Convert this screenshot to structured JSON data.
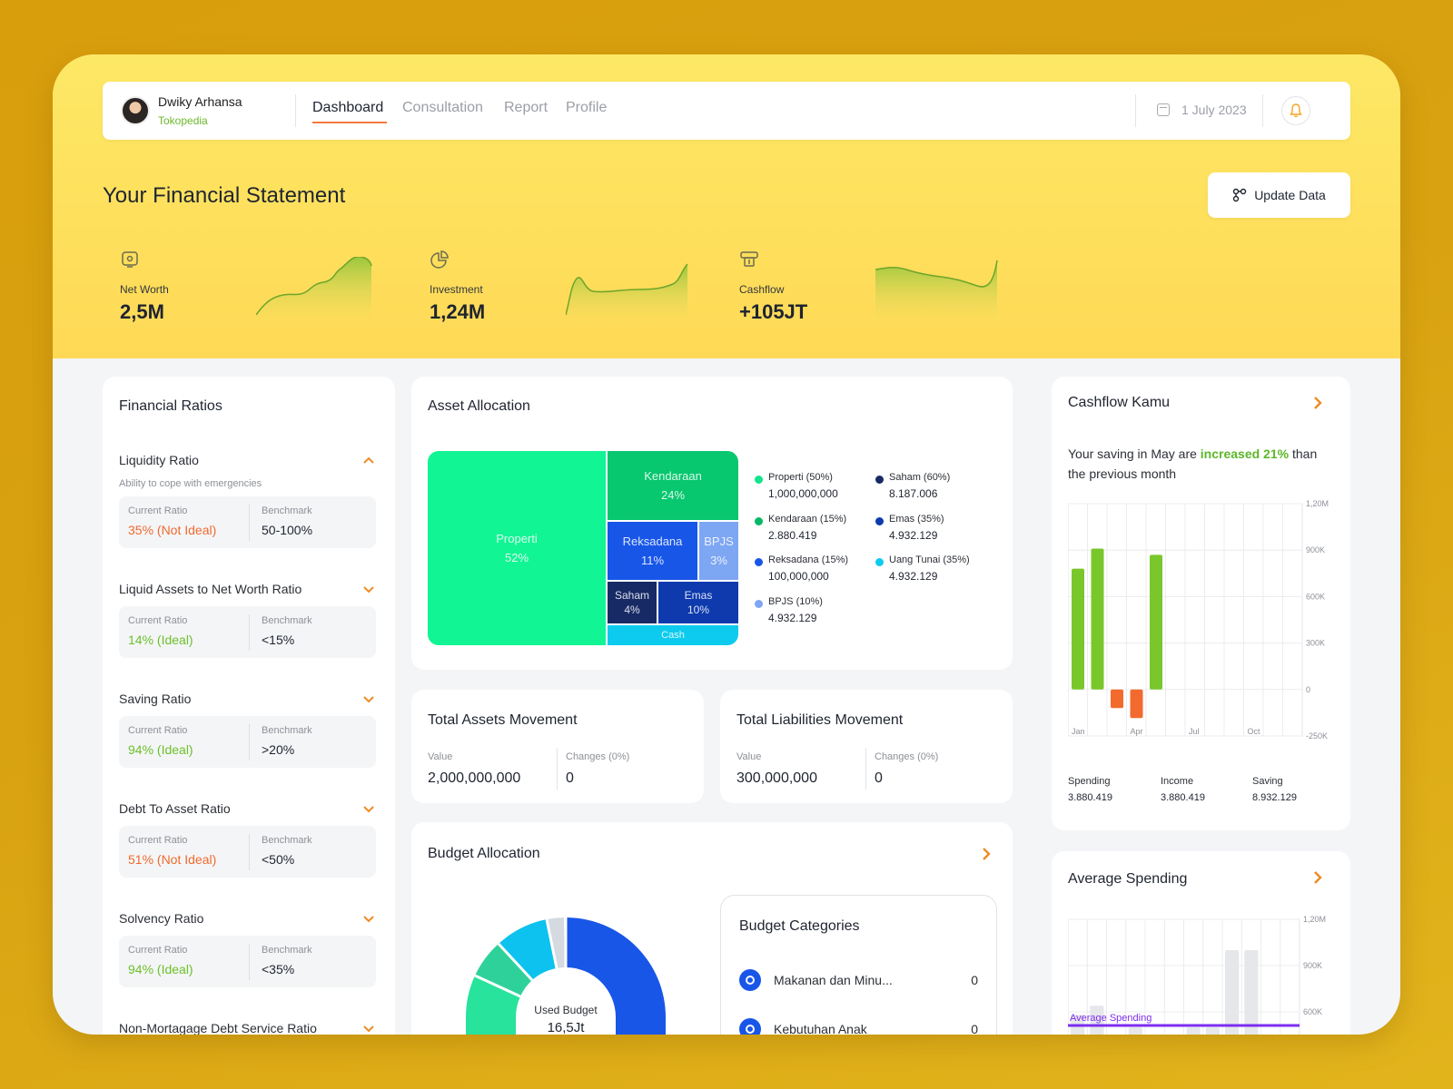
{
  "nav": {
    "user_name": "Dwiky Arhansa",
    "company": "Tokopedia",
    "tabs": [
      {
        "label": "Dashboard",
        "active": true
      },
      {
        "label": "Consultation",
        "active": false
      },
      {
        "label": "Report",
        "active": false
      },
      {
        "label": "Profile",
        "active": false
      }
    ],
    "date": "1 July 2023"
  },
  "hero": {
    "title": "Your Financial Statement",
    "update_button": "Update Data",
    "metrics": [
      {
        "label": "Net Worth",
        "value": "2,5M",
        "icon": "wallet-icon"
      },
      {
        "label": "Investment",
        "value": "1,24M",
        "icon": "pie-chart-icon"
      },
      {
        "label": "Cashflow",
        "value": "+105JT",
        "icon": "cash-icon"
      }
    ]
  },
  "ratios": {
    "title": "Financial Ratios",
    "items": [
      {
        "name": "Liquidity Ratio",
        "subtitle": "Ability to cope with emergencies",
        "current_label": "Current Ratio",
        "current": "35% (Not Ideal)",
        "status": "bad",
        "benchmark_label": "Benchmark",
        "benchmark": "50-100%",
        "expanded": true
      },
      {
        "name": "Liquid Assets to Net Worth Ratio",
        "current_label": "Current Ratio",
        "current": "14% (Ideal)",
        "status": "good",
        "benchmark_label": "Benchmark",
        "benchmark": "<15%"
      },
      {
        "name": "Saving Ratio",
        "current_label": "Current Ratio",
        "current": "94% (Ideal)",
        "status": "good",
        "benchmark_label": "Benchmark",
        "benchmark": ">20%"
      },
      {
        "name": "Debt To Asset Ratio",
        "current_label": "Current Ratio",
        "current": "51% (Not Ideal)",
        "status": "bad",
        "benchmark_label": "Benchmark",
        "benchmark": "<50%"
      },
      {
        "name": "Solvency Ratio",
        "current_label": "Current Ratio",
        "current": "94% (Ideal)",
        "status": "good",
        "benchmark_label": "Benchmark",
        "benchmark": "<35%"
      },
      {
        "name": "Non-Mortagage Debt Service Ratio"
      }
    ]
  },
  "asset_allocation": {
    "title": "Asset Allocation",
    "cells": [
      {
        "name": "Properti",
        "pct": "52%",
        "color": "#12f594"
      },
      {
        "name": "Kendaraan",
        "pct": "24%",
        "color": "#07c76f"
      },
      {
        "name": "Reksadana",
        "pct": "11%",
        "color": "#1856e8"
      },
      {
        "name": "BPJS",
        "pct": "3%",
        "color": "#7da6f3"
      },
      {
        "name": "Saham",
        "pct": "4%",
        "color": "#172a66"
      },
      {
        "name": "Emas",
        "pct": "10%",
        "color": "#0e3aae"
      },
      {
        "name": "Cash",
        "pct": "",
        "color": "#0dcbee"
      }
    ],
    "legend": [
      {
        "label": "Properti (50%)",
        "value": "1,000,000,000",
        "color": "#12e58c"
      },
      {
        "label": "Saham (60%)",
        "value": "8.187.006",
        "color": "#172a66"
      },
      {
        "label": "Kendaraan (15%)",
        "value": "2.880.419",
        "color": "#07b864"
      },
      {
        "label": "Emas (35%)",
        "value": "4.932.129",
        "color": "#0e3aae"
      },
      {
        "label": "Reksadana (15%)",
        "value": "100,000,000",
        "color": "#1856e8"
      },
      {
        "label": "Uang Tunai (35%)",
        "value": "4.932.129",
        "color": "#0dcbee"
      },
      {
        "label": "BPJS (10%)",
        "value": "4.932.129",
        "color": "#7da6f3"
      }
    ]
  },
  "assets_movement": {
    "title": "Total Assets Movement",
    "value_label": "Value",
    "value": "2,000,000,000",
    "changes_label": "Changes (0%)",
    "changes": "0"
  },
  "liabilities_movement": {
    "title": "Total Liabilities Movement",
    "value_label": "Value",
    "value": "300,000,000",
    "changes_label": "Changes (0%)",
    "changes": "0"
  },
  "budget": {
    "title": "Budget Allocation",
    "center_label": "Used Budget",
    "center_value": "16,5Jt",
    "categories_title": "Budget Categories",
    "categories": [
      {
        "name": "Makanan dan Minu...",
        "value": "0"
      },
      {
        "name": "Kebutuhan Anak",
        "value": "0"
      }
    ],
    "donut_colors": [
      "#1856e8",
      "#27e39b",
      "#2fd19a",
      "#0dc2ee",
      "#d5d9e0"
    ]
  },
  "cashflow": {
    "title": "Cashflow Kamu",
    "text_before": "Your saving in May are ",
    "text_highlight": "increased 21%",
    "text_after": " than the previous month",
    "stats": [
      {
        "label": "Spending",
        "value": "3.880.419"
      },
      {
        "label": "Income",
        "value": "3.880.419"
      },
      {
        "label": "Saving",
        "value": "8.932.129"
      }
    ]
  },
  "average_spending": {
    "title": "Average Spending",
    "line_label": "Average Spending"
  },
  "chart_data": [
    {
      "type": "bar",
      "title": "Cashflow Kamu",
      "x_tick_labels": [
        "Jan",
        "Apr",
        "Jul",
        "Oct"
      ],
      "y_tick_labels": [
        "1,20M",
        "900K",
        "600K",
        "300K",
        "0",
        "-250K"
      ],
      "ylim": [
        -300000,
        1200000
      ],
      "bars": [
        {
          "value": 780000,
          "color": "#79c72b"
        },
        {
          "value": 910000,
          "color": "#79c72b"
        },
        {
          "value": -150000,
          "color": "#f26a2e"
        },
        {
          "value": -230000,
          "color": "#f26a2e"
        },
        {
          "value": 870000,
          "color": "#79c72b"
        }
      ],
      "grid": true
    },
    {
      "type": "bar",
      "title": "Average Spending",
      "y_tick_labels": [
        "1,20M",
        "900K",
        "600K"
      ],
      "values": [
        580000,
        640000,
        300000,
        500000,
        300000,
        250000,
        500000,
        500000,
        1000000,
        1000000,
        300000,
        450000
      ],
      "color": "#e6e7ea",
      "average_line_color": "#7c2ef0",
      "grid": true
    }
  ]
}
